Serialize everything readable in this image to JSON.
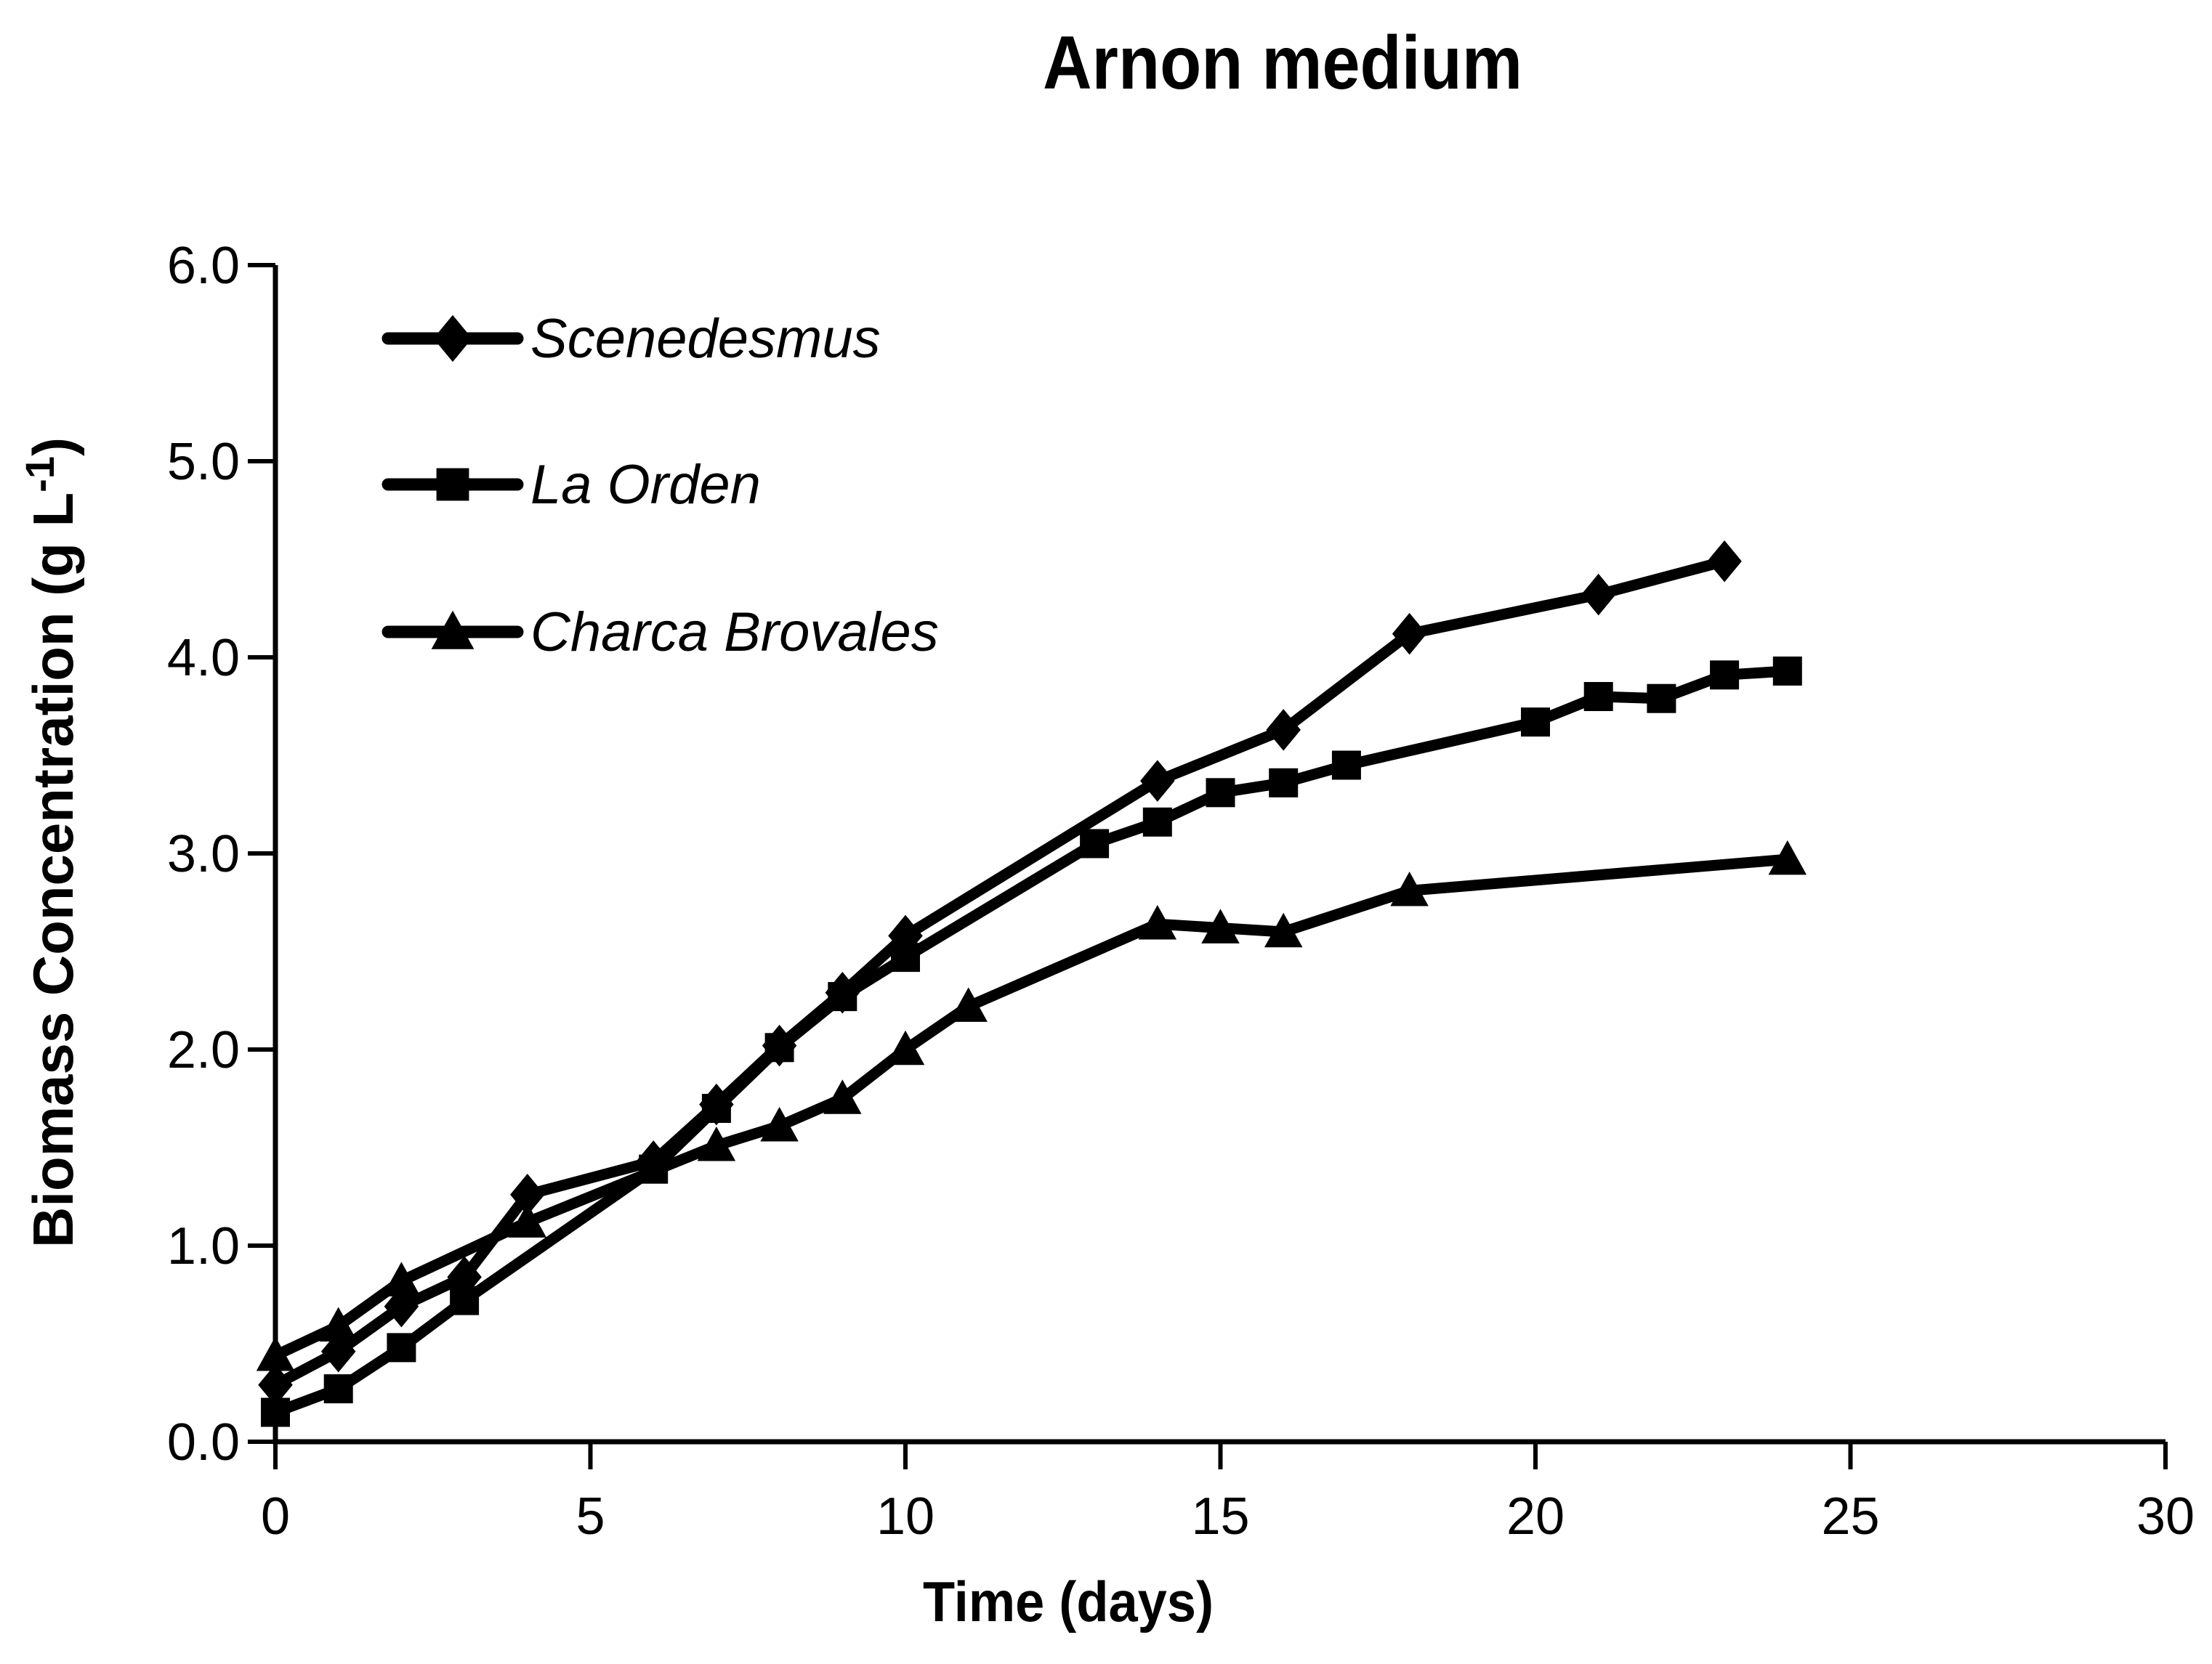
{
  "title": "Arnon medium",
  "chart_data": {
    "type": "line",
    "title": "Arnon medium",
    "xlabel": "Time (days)",
    "ylabel": "Biomass Concentration (g L-1)",
    "ylabel_parts": {
      "main": "Biomass Concentration (g L",
      "superscript": "-1",
      "end": ")"
    },
    "xlim": [
      0,
      30
    ],
    "ylim": [
      0.0,
      6.0
    ],
    "x_ticks": [
      "0",
      "5",
      "10",
      "15",
      "20",
      "25",
      "30"
    ],
    "x_tick_values": [
      0,
      5,
      10,
      15,
      20,
      25,
      30
    ],
    "y_ticks": [
      "0.0",
      "1.0",
      "2.0",
      "3.0",
      "4.0",
      "5.0",
      "6.0"
    ],
    "y_tick_values": [
      0,
      1,
      2,
      3,
      4,
      5,
      6
    ],
    "grid": false,
    "legend_position": "top-left-inside",
    "line_color": "#000000",
    "background_color": "#ffffff",
    "series": [
      {
        "name": "Scenedesmus",
        "marker": "diamond",
        "color": "#000000",
        "points": [
          [
            0,
            0.29
          ],
          [
            1,
            0.46
          ],
          [
            2,
            0.69
          ],
          [
            3,
            0.84
          ],
          [
            4,
            1.26
          ],
          [
            6,
            1.43
          ],
          [
            7,
            1.72
          ],
          [
            8,
            2.02
          ],
          [
            9,
            2.29
          ],
          [
            10,
            2.58
          ],
          [
            14,
            3.37
          ],
          [
            16,
            3.63
          ],
          [
            18,
            4.12
          ],
          [
            21,
            4.32
          ],
          [
            23,
            4.49
          ]
        ]
      },
      {
        "name": "La Orden",
        "marker": "square",
        "color": "#000000",
        "points": [
          [
            0,
            0.15
          ],
          [
            1,
            0.27
          ],
          [
            2,
            0.48
          ],
          [
            3,
            0.72
          ],
          [
            6,
            1.39
          ],
          [
            7,
            1.7
          ],
          [
            8,
            2.01
          ],
          [
            9,
            2.27
          ],
          [
            10,
            2.47
          ],
          [
            13,
            3.05
          ],
          [
            14,
            3.16
          ],
          [
            15,
            3.31
          ],
          [
            16,
            3.36
          ],
          [
            17,
            3.45
          ],
          [
            20,
            3.67
          ],
          [
            21,
            3.8
          ],
          [
            22,
            3.79
          ],
          [
            23,
            3.91
          ],
          [
            24,
            3.93
          ]
        ]
      },
      {
        "name": "Charca Brovales",
        "marker": "triangle",
        "color": "#000000",
        "points": [
          [
            0,
            0.44
          ],
          [
            1,
            0.59
          ],
          [
            2,
            0.82
          ],
          [
            4,
            1.12
          ],
          [
            7,
            1.51
          ],
          [
            8,
            1.61
          ],
          [
            9,
            1.75
          ],
          [
            10,
            2.0
          ],
          [
            11,
            2.22
          ],
          [
            14,
            2.64
          ],
          [
            15,
            2.62
          ],
          [
            16,
            2.6
          ],
          [
            18,
            2.81
          ],
          [
            24,
            2.97
          ]
        ]
      }
    ]
  }
}
